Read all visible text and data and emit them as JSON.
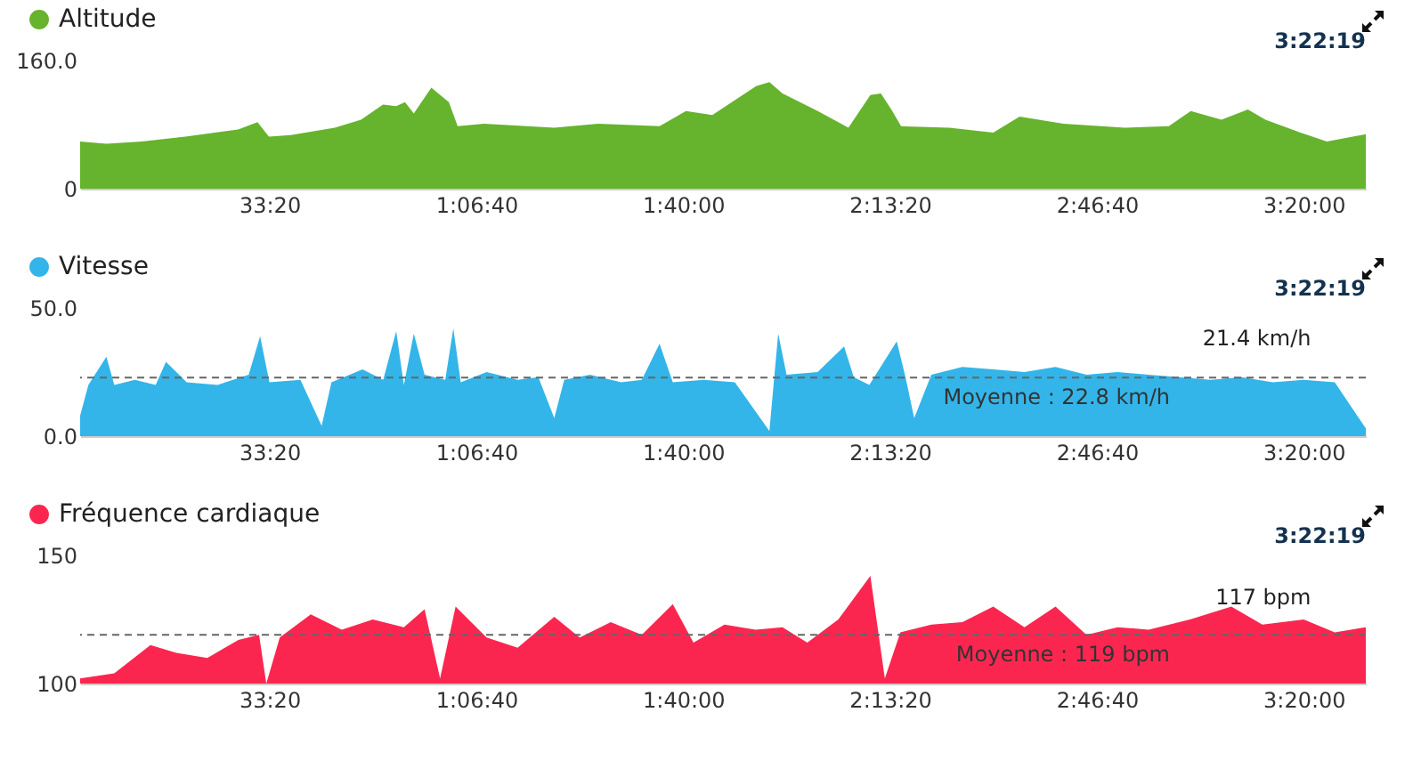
{
  "chart_data": [
    {
      "type": "area",
      "legend": "top left",
      "x": [
        170,
        424,
        764,
        1188,
        1698,
        1885,
        1995,
        2207,
        2632,
        2886,
        3098,
        3226,
        3311,
        3396,
        3565,
        3735,
        3820,
        4075,
        4754,
        5178,
        5772,
        6027,
        6282,
        6706,
        6834,
        6961,
        7301,
        7598,
        7810,
        7912,
        8022,
        8107,
        8574,
        8998,
        9253,
        9677,
        10272,
        10696,
        10908,
        11205,
        11460,
        11630,
        11969,
        12224,
        12600
      ],
      "series": [
        {
          "name": "Altitude",
          "color": "#66b32e",
          "values": [
            59,
            56,
            59,
            65,
            74,
            83,
            65,
            67,
            76,
            86,
            105,
            103,
            108,
            94,
            126,
            108,
            78,
            81,
            76,
            81,
            78,
            97,
            92,
            128,
            133,
            119,
            97,
            76,
            117,
            119,
            97,
            78,
            76,
            70,
            90,
            81,
            76,
            78,
            97,
            86,
            99,
            86,
            70,
            59,
            68
          ]
        }
      ],
      "xlim": [
        170,
        12600
      ],
      "xticks": [
        {
          "value": 2000,
          "label": "33:20"
        },
        {
          "value": 4000,
          "label": "1:06:40"
        },
        {
          "value": 6000,
          "label": "1:40:00"
        },
        {
          "value": 8000,
          "label": "2:13:20"
        },
        {
          "value": 10000,
          "label": "2:46:40"
        },
        {
          "value": 12000,
          "label": "3:20:00"
        }
      ],
      "ylim": [
        0,
        160
      ],
      "yticks": [
        0,
        {
          "value": 160,
          "label": "160.0"
        }
      ],
      "annotations": [
        "3:22:19"
      ]
    },
    {
      "type": "area",
      "legend": "top left",
      "x": [
        170,
        250,
        424,
        500,
        700,
        900,
        1000,
        1200,
        1500,
        1800,
        1910,
        2000,
        2300,
        2505,
        2600,
        2900,
        3100,
        3226,
        3300,
        3396,
        3500,
        3700,
        3778,
        3850,
        4100,
        4400,
        4600,
        4754,
        4850,
        5100,
        5400,
        5600,
        5772,
        5900,
        6200,
        6500,
        6834,
        6919,
        7000,
        7300,
        7556,
        7650,
        7800,
        8065,
        8150,
        8234,
        8400,
        8700,
        9000,
        9300,
        9600,
        9900,
        10200,
        10500,
        10800,
        11100,
        11400,
        11700,
        12000,
        12300,
        12600
      ],
      "series": [
        {
          "name": "Vitesse",
          "color": "#33b5e9",
          "values": [
            8,
            20,
            31,
            20,
            22,
            20,
            29,
            21,
            20,
            24,
            39,
            21,
            22,
            4,
            21,
            26,
            22,
            41,
            20,
            40,
            24,
            22,
            42,
            21,
            25,
            22,
            23,
            7,
            22,
            24,
            21,
            22,
            36,
            21,
            22,
            21,
            2,
            40,
            24,
            25,
            35,
            23,
            20,
            37,
            23,
            7,
            24,
            27,
            26,
            25,
            27,
            24,
            25,
            24,
            23,
            22,
            23,
            21,
            22,
            21,
            3
          ]
        }
      ],
      "xlim": [
        170,
        12600
      ],
      "xticks": [
        {
          "value": 2000,
          "label": "33:20"
        },
        {
          "value": 4000,
          "label": "1:06:40"
        },
        {
          "value": 6000,
          "label": "1:40:00"
        },
        {
          "value": 8000,
          "label": "2:13:20"
        },
        {
          "value": 10000,
          "label": "2:46:40"
        },
        {
          "value": 12000,
          "label": "3:20:00"
        }
      ],
      "ylim": [
        0,
        50
      ],
      "yticks": [
        {
          "value": 0,
          "label": "0.0"
        },
        {
          "value": 50,
          "label": "50.0"
        }
      ],
      "ref_lines": [
        {
          "axis": "y",
          "value": 22.8,
          "label": "Moyenne : 22.8 km/h",
          "line_style": "dashed"
        }
      ],
      "annotations": [
        "3:22:19",
        {
          "text": "21.4 km/h",
          "x": 12139,
          "y": 21.4
        }
      ]
    },
    {
      "type": "area",
      "legend": "top left",
      "x": [
        170,
        500,
        850,
        1100,
        1400,
        1700,
        1900,
        1970,
        2100,
        2400,
        2700,
        3000,
        3300,
        3500,
        3650,
        3800,
        4100,
        4400,
        4754,
        5000,
        5300,
        5600,
        5900,
        6100,
        6400,
        6700,
        6961,
        7200,
        7500,
        7810,
        7950,
        8100,
        8400,
        8700,
        8998,
        9300,
        9600,
        9900,
        10200,
        10500,
        10900,
        11300,
        11600,
        12000,
        12300,
        12600
      ],
      "series": [
        {
          "name": "Fréquence cardiaque",
          "color": "#fb2650",
          "values": [
            102,
            104,
            115,
            112,
            110,
            117,
            119,
            100,
            118,
            127,
            121,
            125,
            122,
            129,
            102,
            130,
            118,
            114,
            126,
            118,
            124,
            119,
            131,
            116,
            123,
            121,
            122,
            116,
            125,
            142,
            102,
            120,
            123,
            124,
            130,
            122,
            130,
            119,
            122,
            121,
            125,
            130,
            123,
            125,
            120,
            122
          ]
        }
      ],
      "xlim": [
        170,
        12600
      ],
      "xticks": [
        {
          "value": 2000,
          "label": "33:20"
        },
        {
          "value": 4000,
          "label": "1:06:40"
        },
        {
          "value": 6000,
          "label": "1:40:00"
        },
        {
          "value": 8000,
          "label": "2:13:20"
        },
        {
          "value": 10000,
          "label": "2:46:40"
        },
        {
          "value": 12000,
          "label": "3:20:00"
        }
      ],
      "ylim": [
        100,
        150
      ],
      "yticks": [
        100,
        150
      ],
      "ref_lines": [
        {
          "axis": "y",
          "value": 119,
          "label": "Moyenne : 119 bpm",
          "line_style": "dashed"
        }
      ],
      "annotations": [
        "3:22:19",
        {
          "text": "117 bpm",
          "x": 12139,
          "y": 117
        }
      ]
    }
  ]
}
